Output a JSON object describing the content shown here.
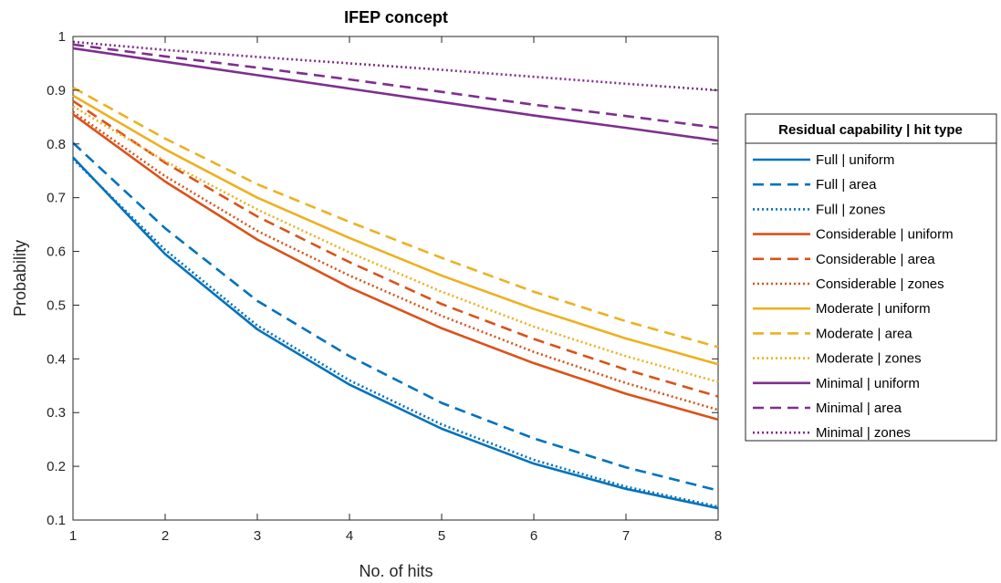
{
  "chart_data": {
    "type": "line",
    "title": "IFEP concept",
    "xlabel": "No. of hits",
    "ylabel": "Probability",
    "xlim": [
      1,
      8
    ],
    "ylim": [
      0.1,
      1
    ],
    "x": [
      1,
      2,
      3,
      4,
      5,
      6,
      7,
      8
    ],
    "xticks": [
      "1",
      "2",
      "3",
      "4",
      "5",
      "6",
      "7",
      "8"
    ],
    "yticks": [
      "0.1",
      "0.2",
      "0.3",
      "0.4",
      "0.5",
      "0.6",
      "0.7",
      "0.8",
      "0.9",
      "1"
    ],
    "grid": false,
    "legend_title": "Residual capability | hit type",
    "legend_position": "outside-right",
    "series": [
      {
        "name": "Full | uniform",
        "color": "#0072BD",
        "style": "solid",
        "values": [
          0.775,
          0.595,
          0.455,
          0.352,
          0.27,
          0.205,
          0.158,
          0.122
        ]
      },
      {
        "name": "Full | area",
        "color": "#0072BD",
        "style": "dashed",
        "values": [
          0.802,
          0.643,
          0.508,
          0.405,
          0.318,
          0.252,
          0.198,
          0.155
        ]
      },
      {
        "name": "Full | zones",
        "color": "#0072BD",
        "style": "dotted",
        "values": [
          0.772,
          0.603,
          0.462,
          0.36,
          0.278,
          0.212,
          0.162,
          0.125
        ]
      },
      {
        "name": "Considerable | uniform",
        "color": "#D95319",
        "style": "solid",
        "values": [
          0.855,
          0.73,
          0.622,
          0.533,
          0.457,
          0.392,
          0.335,
          0.287
        ]
      },
      {
        "name": "Considerable | area",
        "color": "#D95319",
        "style": "dashed",
        "values": [
          0.88,
          0.765,
          0.665,
          0.58,
          0.502,
          0.437,
          0.38,
          0.33
        ]
      },
      {
        "name": "Considerable | zones",
        "color": "#D95319",
        "style": "dotted",
        "values": [
          0.86,
          0.74,
          0.638,
          0.555,
          0.48,
          0.413,
          0.355,
          0.305
        ]
      },
      {
        "name": "Moderate | uniform",
        "color": "#EDB120",
        "style": "solid",
        "values": [
          0.89,
          0.79,
          0.7,
          0.625,
          0.555,
          0.493,
          0.438,
          0.39
        ]
      },
      {
        "name": "Moderate | area",
        "color": "#EDB120",
        "style": "dashed",
        "values": [
          0.905,
          0.81,
          0.725,
          0.655,
          0.588,
          0.525,
          0.47,
          0.422
        ]
      },
      {
        "name": "Moderate | zones",
        "color": "#EDB120",
        "style": "dotted",
        "values": [
          0.87,
          0.768,
          0.678,
          0.598,
          0.525,
          0.46,
          0.405,
          0.357
        ]
      },
      {
        "name": "Minimal | uniform",
        "color": "#7E2F8E",
        "style": "solid",
        "values": [
          0.978,
          0.953,
          0.928,
          0.903,
          0.878,
          0.853,
          0.83,
          0.806
        ]
      },
      {
        "name": "Minimal | area",
        "color": "#7E2F8E",
        "style": "dashed",
        "values": [
          0.985,
          0.963,
          0.942,
          0.92,
          0.897,
          0.873,
          0.852,
          0.83
        ]
      },
      {
        "name": "Minimal | zones",
        "color": "#7E2F8E",
        "style": "dotted",
        "values": [
          0.99,
          0.975,
          0.962,
          0.95,
          0.938,
          0.925,
          0.912,
          0.9
        ]
      }
    ]
  }
}
